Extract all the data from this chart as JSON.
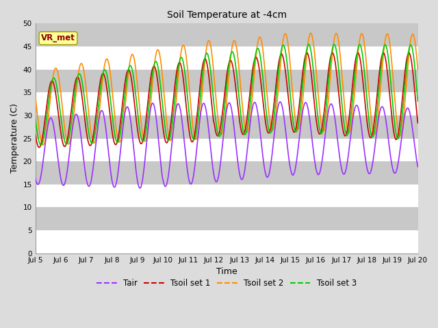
{
  "title": "Soil Temperature at -4cm",
  "xlabel": "Time",
  "ylabel": "Temperature (C)",
  "ylim": [
    0,
    50
  ],
  "yticks": [
    0,
    5,
    10,
    15,
    20,
    25,
    30,
    35,
    40,
    45,
    50
  ],
  "x_tick_labels": [
    "Jul 5",
    "Jul 6",
    "Jul 7",
    "Jul 8",
    "Jul 9",
    "Jul 10",
    "Jul 11",
    "Jul 12",
    "Jul 13",
    "Jul 14",
    "Jul 15",
    "Jul 16",
    "Jul 17",
    "Jul 18",
    "Jul 19",
    "Jul 20"
  ],
  "colors": {
    "Tair": "#9B30FF",
    "Tsoil set 1": "#CC0000",
    "Tsoil set 2": "#FF8C00",
    "Tsoil set 3": "#00CC00"
  },
  "legend_labels": [
    "Tair",
    "Tsoil set 1",
    "Tsoil set 2",
    "Tsoil set 3"
  ],
  "annotation_text": "VR_met",
  "annotation_color": "#8B0000",
  "annotation_bg": "#FFFF99",
  "bg_color": "#DCDCDC",
  "band_light": "#DCDCDC",
  "band_dark": "#C8C8C8",
  "grid_color": "#FFFFFF",
  "linewidth": 1.2
}
